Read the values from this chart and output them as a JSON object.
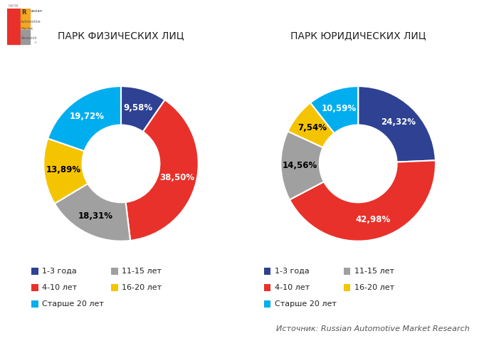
{
  "title_left": "ПАРК ФИЗИЧЕСКИХ ЛИЦ",
  "title_right": "ПАРК ЮРИДИЧЕСКИХ ЛИЦ",
  "source": "Источник: Russian Automotive Market Research",
  "chart_left": {
    "labels": [
      "1-3 года",
      "4-10 лет",
      "11-15 лет",
      "16-20 лет",
      "Старше 20 лет"
    ],
    "values": [
      9.58,
      38.5,
      18.31,
      13.89,
      19.72
    ],
    "colors": [
      "#2E4192",
      "#E8312A",
      "#A0A0A0",
      "#F5C400",
      "#00AEEF"
    ],
    "text_colors": [
      "white",
      "white",
      "black",
      "black",
      "white"
    ]
  },
  "chart_right": {
    "labels": [
      "1-3 года",
      "4-10 лет",
      "11-15 лет",
      "16-20 лет",
      "Старше 20 лет"
    ],
    "values": [
      24.32,
      42.98,
      14.56,
      7.54,
      10.59
    ],
    "colors": [
      "#2E4192",
      "#E8312A",
      "#A0A0A0",
      "#F5C400",
      "#00AEEF"
    ],
    "text_colors": [
      "white",
      "white",
      "black",
      "black",
      "white"
    ]
  },
  "legend_labels": [
    "1-3 года",
    "11-15 лет",
    "4-10 лет",
    "16-20 лет",
    "Старше 20 лет"
  ],
  "legend_colors": [
    "#2E4192",
    "#A0A0A0",
    "#E8312A",
    "#F5C400",
    "#00AEEF"
  ],
  "background_color": "#FFFFFF",
  "title_fontsize": 10,
  "label_fontsize": 8.5,
  "legend_fontsize": 8,
  "source_fontsize": 8
}
